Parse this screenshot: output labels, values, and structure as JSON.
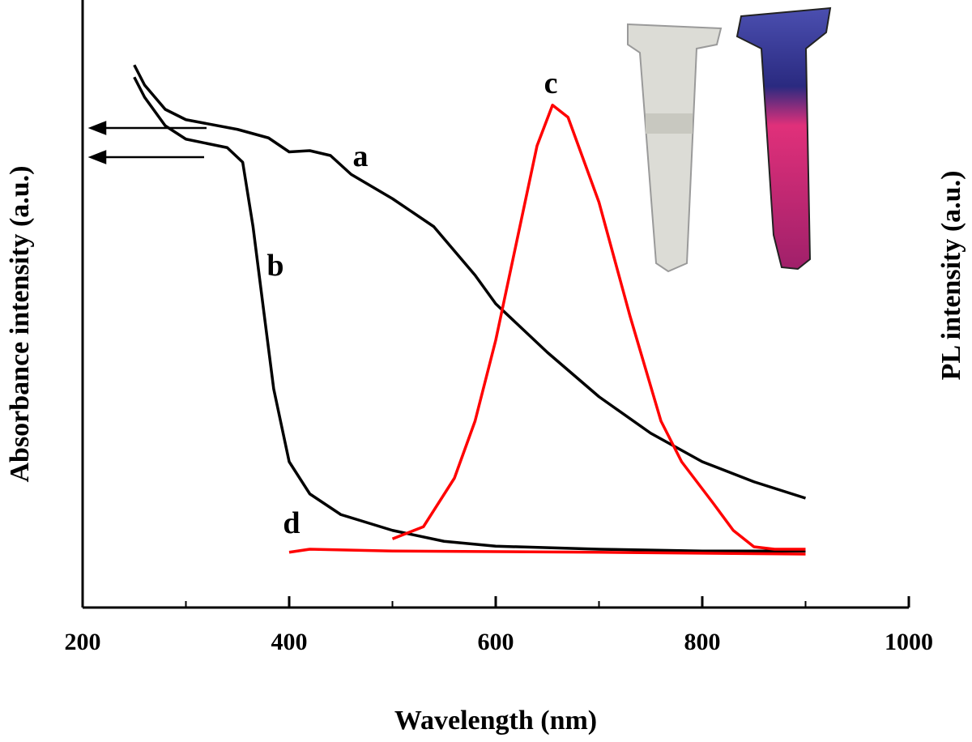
{
  "chart_data": {
    "type": "line",
    "x_label": "Wavelength (nm)",
    "y_label": "Absorbance intensity (a.u.)",
    "y2_label": "PL intensity (a.u.)",
    "xlim": [
      200,
      1000
    ],
    "xticks": [
      200,
      400,
      600,
      800,
      1000
    ],
    "xminorticks": [
      300,
      500,
      700,
      900
    ],
    "ylim": [
      0,
      100
    ],
    "series": [
      {
        "name": "a",
        "color": "#000000",
        "x": [
          250,
          260,
          280,
          300,
          350,
          380,
          400,
          420,
          440,
          460,
          500,
          540,
          580,
          600,
          650,
          700,
          750,
          800,
          850,
          900
        ],
        "values": [
          89.3,
          86,
          82,
          80.3,
          78.7,
          77.3,
          75,
          75.2,
          74.4,
          71.3,
          67.3,
          62.7,
          54.7,
          50,
          42,
          34.7,
          28.7,
          24,
          20.7,
          18
        ]
      },
      {
        "name": "b",
        "color": "#000000",
        "x": [
          250,
          260,
          280,
          300,
          340,
          355,
          365,
          375,
          385,
          400,
          420,
          450,
          500,
          550,
          600,
          700,
          800,
          900
        ],
        "values": [
          87.3,
          84,
          79.3,
          77.1,
          75.7,
          73.3,
          62.7,
          49.3,
          36,
          24,
          18.7,
          15.3,
          12.7,
          10.9,
          10.1,
          9.6,
          9.3,
          9.3
        ]
      },
      {
        "name": "c",
        "color": "#ff0000",
        "x": [
          500,
          530,
          560,
          580,
          600,
          620,
          640,
          655,
          670,
          700,
          730,
          760,
          780,
          810,
          830,
          850,
          870,
          900
        ],
        "values": [
          11.3,
          13.3,
          21.3,
          30.7,
          44,
          60,
          76,
          82.7,
          80.7,
          66.7,
          48,
          30.7,
          24,
          17.3,
          12.7,
          10,
          9.6,
          9.6
        ]
      },
      {
        "name": "d",
        "color": "#ff0000",
        "x": [
          400,
          420,
          500,
          700,
          900
        ],
        "values": [
          9.1,
          9.6,
          9.3,
          9.1,
          8.8
        ]
      }
    ]
  }
}
